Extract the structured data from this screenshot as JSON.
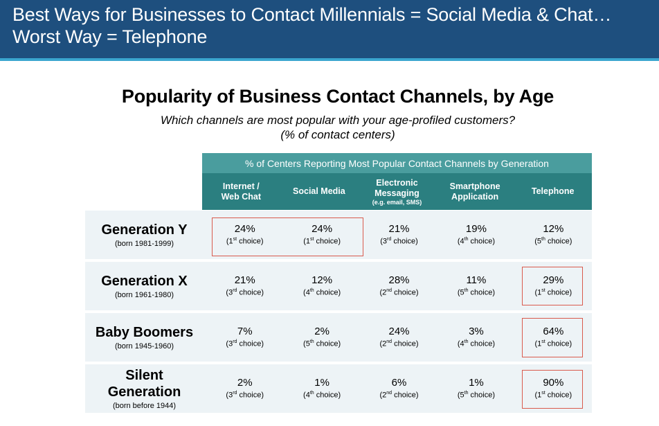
{
  "slide": {
    "title_line1": "Best Ways for Businesses to Contact Millennials = Social Media & Chat…",
    "title_line2": "Worst Way = Telephone",
    "header_color": "#1e4f7e",
    "rule_color": "#3aa6cf"
  },
  "chart_data": {
    "type": "table",
    "title": "Popularity of Business Contact Channels, by Age",
    "subtitle_line1": "Which channels are most popular with your age-profiled customers?",
    "subtitle_line2": "(% of contact centers)",
    "band_header": "% of Centers Reporting Most Popular Contact Channels by Generation",
    "columns": [
      {
        "line1": "Internet /",
        "line2": "Web Chat",
        "note": ""
      },
      {
        "line1": "Social Media",
        "line2": "",
        "note": ""
      },
      {
        "line1": "Electronic",
        "line2": "Messaging",
        "note": "(e.g. email, SMS)"
      },
      {
        "line1": "Smartphone",
        "line2": "Application",
        "note": ""
      },
      {
        "line1": "Telephone",
        "line2": "",
        "note": ""
      }
    ],
    "rows": [
      {
        "generation": "Generation Y",
        "born": "(born 1981-1999)",
        "cells": [
          {
            "value": "24%",
            "ordinal": "1",
            "suffix": "st"
          },
          {
            "value": "24%",
            "ordinal": "1",
            "suffix": "st"
          },
          {
            "value": "21%",
            "ordinal": "3",
            "suffix": "rd"
          },
          {
            "value": "19%",
            "ordinal": "4",
            "suffix": "th"
          },
          {
            "value": "12%",
            "ordinal": "5",
            "suffix": "th"
          }
        ]
      },
      {
        "generation": "Generation X",
        "born": "(born 1961-1980)",
        "cells": [
          {
            "value": "21%",
            "ordinal": "3",
            "suffix": "rd"
          },
          {
            "value": "12%",
            "ordinal": "4",
            "suffix": "th"
          },
          {
            "value": "28%",
            "ordinal": "2",
            "suffix": "nd"
          },
          {
            "value": "11%",
            "ordinal": "5",
            "suffix": "th"
          },
          {
            "value": "29%",
            "ordinal": "1",
            "suffix": "st"
          }
        ]
      },
      {
        "generation": "Baby Boomers",
        "born": "(born 1945-1960)",
        "cells": [
          {
            "value": "7%",
            "ordinal": "3",
            "suffix": "rd"
          },
          {
            "value": "2%",
            "ordinal": "5",
            "suffix": "th"
          },
          {
            "value": "24%",
            "ordinal": "2",
            "suffix": "nd"
          },
          {
            "value": "3%",
            "ordinal": "4",
            "suffix": "th"
          },
          {
            "value": "64%",
            "ordinal": "1",
            "suffix": "st"
          }
        ]
      },
      {
        "generation": "Silent Generation",
        "born": "(born before 1944)",
        "cells": [
          {
            "value": "2%",
            "ordinal": "3",
            "suffix": "rd"
          },
          {
            "value": "1%",
            "ordinal": "4",
            "suffix": "th"
          },
          {
            "value": "6%",
            "ordinal": "2",
            "suffix": "nd"
          },
          {
            "value": "1%",
            "ordinal": "5",
            "suffix": "th"
          },
          {
            "value": "90%",
            "ordinal": "1",
            "suffix": "st"
          }
        ]
      }
    ],
    "choice_word": "choice",
    "highlight_color": "#d95a4c",
    "band_color": "#4a9d9e",
    "column_header_color": "#2b7f80",
    "row_color": "#edf3f6"
  }
}
